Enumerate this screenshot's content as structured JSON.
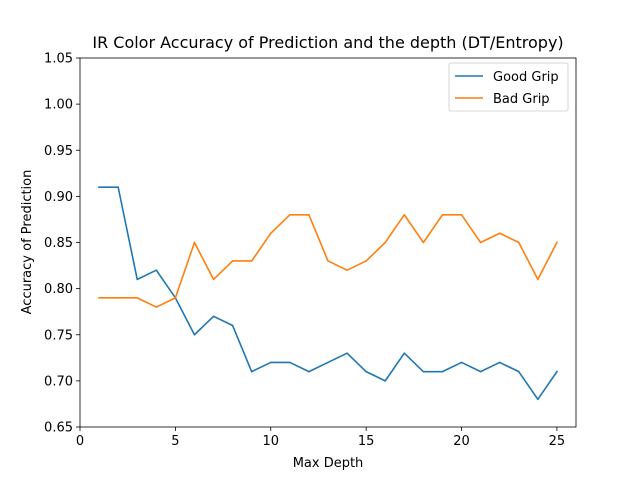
{
  "chart_data": {
    "type": "line",
    "title": "IR Color Accuracy of Prediction and the depth (DT/Entropy)",
    "xlabel": "Max Depth",
    "ylabel": "Accuracy of Prediction",
    "xlim": [
      0,
      26
    ],
    "ylim": [
      0.65,
      1.05
    ],
    "xticks": [
      0,
      5,
      10,
      15,
      20,
      25
    ],
    "yticks": [
      0.65,
      0.7,
      0.75,
      0.8,
      0.85,
      0.9,
      0.95,
      1.0,
      1.05
    ],
    "ytick_labels": [
      "0.65",
      "0.70",
      "0.75",
      "0.80",
      "0.85",
      "0.90",
      "0.95",
      "1.00",
      "1.05"
    ],
    "grid": false,
    "legend_position": "top-right",
    "x": [
      1,
      2,
      3,
      4,
      5,
      6,
      7,
      8,
      9,
      10,
      11,
      12,
      13,
      14,
      15,
      16,
      17,
      18,
      19,
      20,
      21,
      22,
      23,
      24,
      25
    ],
    "series": [
      {
        "name": "Good Grip",
        "color": "#1f77b4",
        "values": [
          0.91,
          0.91,
          0.81,
          0.82,
          0.79,
          0.75,
          0.77,
          0.76,
          0.71,
          0.72,
          0.72,
          0.71,
          0.72,
          0.73,
          0.71,
          0.7,
          0.73,
          0.71,
          0.71,
          0.72,
          0.71,
          0.72,
          0.71,
          0.68,
          0.71
        ]
      },
      {
        "name": "Bad Grip",
        "color": "#ff7f0e",
        "values": [
          0.79,
          0.79,
          0.79,
          0.78,
          0.79,
          0.85,
          0.81,
          0.83,
          0.83,
          0.86,
          0.88,
          0.88,
          0.83,
          0.82,
          0.83,
          0.85,
          0.88,
          0.85,
          0.88,
          0.88,
          0.85,
          0.86,
          0.85,
          0.81,
          0.85
        ]
      }
    ]
  }
}
